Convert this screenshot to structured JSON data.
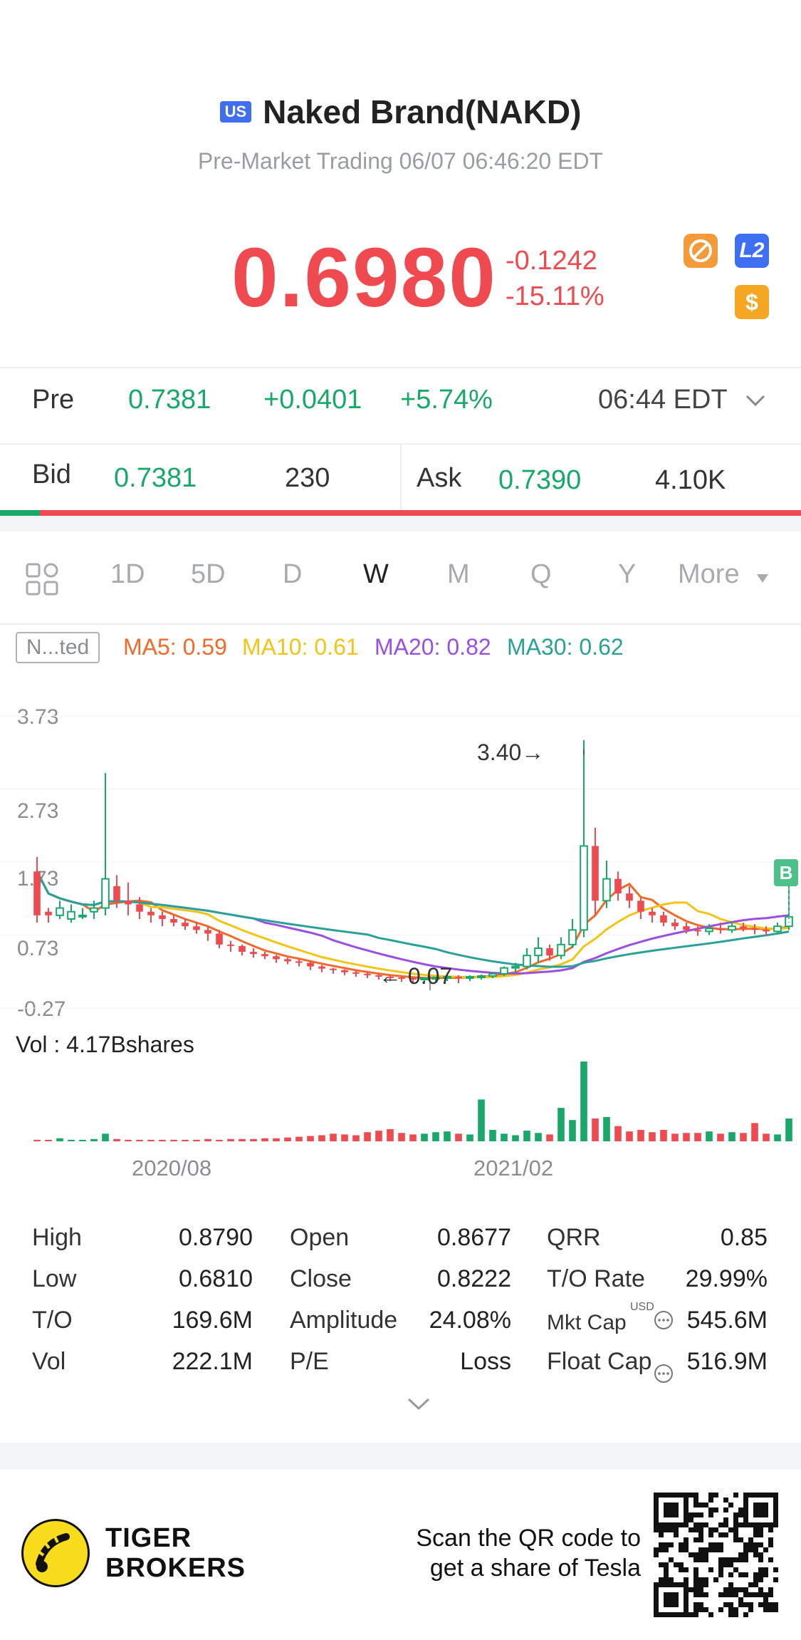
{
  "header": {
    "market_badge": "US",
    "title": "Naked Brand(NAKD)",
    "subtitle": "Pre-Market Trading 06/07 06:46:20 EDT"
  },
  "quote": {
    "price": "0.6980",
    "change": "-0.1242",
    "change_pct": "-15.11%",
    "l2_badge": "L2",
    "dollar_badge": "$"
  },
  "pre_market": {
    "label": "Pre",
    "price": "0.7381",
    "change": "+0.0401",
    "change_pct": "+5.74%",
    "time": "06:44 EDT"
  },
  "bid_ask": {
    "bid_label": "Bid",
    "bid_price": "0.7381",
    "bid_size": "230",
    "ask_label": "Ask",
    "ask_price": "0.7390",
    "ask_size": "4.10K",
    "bid_ratio": 0.05
  },
  "tabs": [
    "1D",
    "5D",
    "D",
    "W",
    "M",
    "Q",
    "Y",
    "More"
  ],
  "active_tab": "W",
  "chart_toolbar": {
    "adjust_label": "N...ted",
    "ma": [
      {
        "label": "MA5: 0.59",
        "color": "#f06a2a"
      },
      {
        "label": "MA10: 0.61",
        "color": "#f2c416"
      },
      {
        "label": "MA20: 0.82",
        "color": "#9b4fe0"
      },
      {
        "label": "MA30: 0.62",
        "color": "#2aa198"
      }
    ]
  },
  "chart_data": {
    "type": "candlestick",
    "y_ticks": [
      "3.73",
      "2.73",
      "1.73",
      "0.73",
      "-0.27"
    ],
    "ylim": [
      -0.27,
      3.73
    ],
    "x_ticks": [
      "2020/08",
      "2021/02"
    ],
    "annotations": {
      "high": "3.40→",
      "low": "← 0.07",
      "buy_marker": "B"
    },
    "volume_label": "Vol  : 4.17Bshares",
    "candles": [
      [
        1.0,
        1.6,
        0.9,
        1.8,
        0
      ],
      [
        1.05,
        1.0,
        0.9,
        1.1,
        0
      ],
      [
        1.0,
        1.1,
        0.95,
        1.2,
        1
      ],
      [
        0.95,
        1.05,
        0.9,
        1.15,
        1
      ],
      [
        1.0,
        1.0,
        0.95,
        1.1,
        1
      ],
      [
        1.05,
        1.1,
        0.95,
        1.2,
        1
      ],
      [
        1.1,
        1.5,
        1.0,
        2.95,
        1
      ],
      [
        1.4,
        1.2,
        1.1,
        1.55,
        0
      ],
      [
        1.2,
        1.15,
        1.0,
        1.45,
        0
      ],
      [
        1.15,
        1.05,
        0.95,
        1.25,
        0
      ],
      [
        1.05,
        1.0,
        0.9,
        1.1,
        0
      ],
      [
        1.0,
        0.95,
        0.85,
        1.05,
        0
      ],
      [
        0.95,
        0.9,
        0.85,
        1.0,
        0
      ],
      [
        0.9,
        0.85,
        0.8,
        0.95,
        0
      ],
      [
        0.85,
        0.8,
        0.75,
        0.9,
        0
      ],
      [
        0.8,
        0.75,
        0.65,
        0.85,
        0
      ],
      [
        0.75,
        0.6,
        0.55,
        0.8,
        0
      ],
      [
        0.6,
        0.58,
        0.5,
        0.65,
        0
      ],
      [
        0.58,
        0.5,
        0.45,
        0.6,
        0
      ],
      [
        0.5,
        0.47,
        0.42,
        0.55,
        0
      ],
      [
        0.47,
        0.44,
        0.4,
        0.5,
        0
      ],
      [
        0.44,
        0.4,
        0.35,
        0.46,
        0
      ],
      [
        0.4,
        0.37,
        0.33,
        0.42,
        0
      ],
      [
        0.37,
        0.35,
        0.3,
        0.4,
        0
      ],
      [
        0.35,
        0.3,
        0.25,
        0.38,
        0
      ],
      [
        0.3,
        0.27,
        0.22,
        0.32,
        0
      ],
      [
        0.27,
        0.25,
        0.2,
        0.28,
        0
      ],
      [
        0.25,
        0.22,
        0.18,
        0.26,
        0
      ],
      [
        0.22,
        0.2,
        0.16,
        0.24,
        0
      ],
      [
        0.2,
        0.18,
        0.14,
        0.22,
        0
      ],
      [
        0.18,
        0.16,
        0.12,
        0.2,
        0
      ],
      [
        0.16,
        0.15,
        0.1,
        0.18,
        0
      ],
      [
        0.15,
        0.14,
        0.09,
        0.17,
        0
      ],
      [
        0.14,
        0.13,
        0.08,
        0.16,
        0
      ],
      [
        0.13,
        0.14,
        0.08,
        0.15,
        1
      ],
      [
        0.14,
        0.15,
        0.09,
        0.16,
        1
      ],
      [
        0.15,
        0.16,
        0.1,
        0.18,
        1
      ],
      [
        0.16,
        0.15,
        0.07,
        0.18,
        0
      ],
      [
        0.15,
        0.16,
        0.1,
        0.18,
        1
      ],
      [
        0.16,
        0.17,
        0.12,
        0.19,
        1
      ],
      [
        0.17,
        0.2,
        0.14,
        0.22,
        1
      ],
      [
        0.2,
        0.28,
        0.17,
        0.3,
        1
      ],
      [
        0.28,
        0.3,
        0.22,
        0.35,
        1
      ],
      [
        0.3,
        0.45,
        0.26,
        0.55,
        1
      ],
      [
        0.45,
        0.55,
        0.35,
        0.7,
        1
      ],
      [
        0.55,
        0.45,
        0.38,
        0.6,
        0
      ],
      [
        0.45,
        0.6,
        0.4,
        0.7,
        1
      ],
      [
        0.6,
        0.8,
        0.55,
        0.95,
        1
      ],
      [
        0.8,
        1.95,
        0.7,
        3.4,
        1
      ],
      [
        1.95,
        1.2,
        1.0,
        2.2,
        0
      ],
      [
        1.2,
        1.5,
        1.1,
        1.75,
        1
      ],
      [
        1.5,
        1.3,
        1.2,
        1.6,
        0
      ],
      [
        1.3,
        1.2,
        1.1,
        1.4,
        0
      ],
      [
        1.2,
        1.05,
        0.95,
        1.25,
        0
      ],
      [
        1.05,
        1.0,
        0.9,
        1.1,
        0
      ],
      [
        1.0,
        0.9,
        0.85,
        1.05,
        0
      ],
      [
        0.9,
        0.85,
        0.8,
        0.95,
        0
      ],
      [
        0.85,
        0.8,
        0.75,
        0.9,
        0
      ],
      [
        0.8,
        0.78,
        0.72,
        0.85,
        0
      ],
      [
        0.78,
        0.82,
        0.73,
        0.88,
        1
      ],
      [
        0.82,
        0.8,
        0.75,
        0.9,
        0
      ],
      [
        0.8,
        0.85,
        0.76,
        0.92,
        1
      ],
      [
        0.85,
        0.82,
        0.78,
        0.9,
        0
      ],
      [
        0.82,
        0.8,
        0.74,
        0.88,
        0
      ],
      [
        0.8,
        0.78,
        0.72,
        0.85,
        0
      ],
      [
        0.78,
        0.85,
        0.74,
        0.9,
        1
      ],
      [
        0.85,
        0.98,
        0.8,
        1.45,
        1
      ]
    ],
    "volumes": [
      2,
      2,
      4,
      2,
      2,
      3,
      10,
      3,
      2,
      2,
      2,
      2,
      2,
      2,
      2,
      3,
      2,
      3,
      3,
      3,
      4,
      4,
      5,
      6,
      7,
      8,
      10,
      9,
      8,
      12,
      14,
      16,
      11,
      9,
      10,
      12,
      13,
      10,
      9,
      55,
      15,
      10,
      8,
      14,
      11,
      9,
      44,
      28,
      105,
      30,
      32,
      20,
      13,
      15,
      12,
      15,
      10,
      11,
      11,
      13,
      10,
      12,
      11,
      24,
      10,
      9,
      30
    ]
  },
  "stats": [
    {
      "label": "High",
      "value": "0.8790"
    },
    {
      "label": "Open",
      "value": "0.8677"
    },
    {
      "label": "QRR",
      "value": "0.85"
    },
    {
      "label": "Low",
      "value": "0.6810"
    },
    {
      "label": "Close",
      "value": "0.8222"
    },
    {
      "label": "T/O Rate",
      "value": "29.99%"
    },
    {
      "label": "T/O",
      "value": "169.6M"
    },
    {
      "label": "Amplitude",
      "value": "24.08%"
    },
    {
      "label": "Mkt Cap",
      "value": "545.6M",
      "superscript": "USD"
    },
    {
      "label": "Vol",
      "value": "222.1M"
    },
    {
      "label": "P/E",
      "value": "Loss"
    },
    {
      "label": "Float Cap",
      "value": "516.9M"
    }
  ],
  "footer": {
    "brand_line1": "TIGER",
    "brand_line2": "BROKERS",
    "promo_line1": "Scan the QR code to",
    "promo_line2": "get a share of Tesla"
  },
  "colors": {
    "up": "#17a86a",
    "down": "#ef4a4f",
    "accent": "#3d6ff0"
  }
}
